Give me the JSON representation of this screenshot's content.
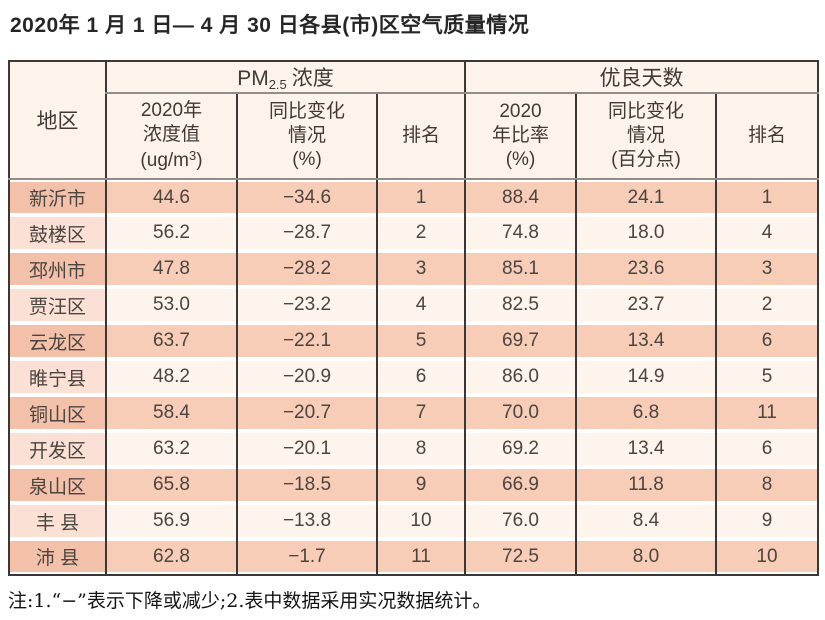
{
  "title": "2020年 1 月 1 日— 4 月 30 日各县(市)区空气质量情况",
  "footnote": "注:1.“−”表示下降或减少;2.表中数据采用实况数据统计。",
  "colors": {
    "band_salmon": "#f8cdb8",
    "band_salmon_dark": "#f3c0aa",
    "band_cream": "#fdf4ee",
    "band_pink": "#fbe1d5",
    "header_bg": "#fdf3ea",
    "border_dark": "#3b3734",
    "rule_gray": "#918d88"
  },
  "table": {
    "group": {
      "pm_prefix": "PM",
      "pm_sub": "2.5",
      "pm_label": "浓度",
      "good_days": "优良天数"
    },
    "columns": {
      "region": "地区",
      "pm_value": {
        "l1": "2020年",
        "l2": "浓度值",
        "unit_pre": "(ug/m",
        "unit_sup": "3",
        "unit_post": ")"
      },
      "pm_change": {
        "l1": "同比变化",
        "l2": "情况",
        "l3": "(%)"
      },
      "pm_rank": "排名",
      "good_ratio": {
        "l1": "2020",
        "l2": "年比率",
        "l3": "(%)"
      },
      "good_change": {
        "l1": "同比变化",
        "l2": "情况",
        "l3": "(百分点)"
      },
      "good_rank": "排名"
    },
    "rows": [
      {
        "region": "新沂市",
        "pm_value": "44.6",
        "pm_change": "−34.6",
        "pm_rank": "1",
        "good_ratio": "88.4",
        "good_change": "24.1",
        "good_rank": "1"
      },
      {
        "region": "鼓楼区",
        "pm_value": "56.2",
        "pm_change": "−28.7",
        "pm_rank": "2",
        "good_ratio": "74.8",
        "good_change": "18.0",
        "good_rank": "4"
      },
      {
        "region": "邳州市",
        "pm_value": "47.8",
        "pm_change": "−28.2",
        "pm_rank": "3",
        "good_ratio": "85.1",
        "good_change": "23.6",
        "good_rank": "3"
      },
      {
        "region": "贾汪区",
        "pm_value": "53.0",
        "pm_change": "−23.2",
        "pm_rank": "4",
        "good_ratio": "82.5",
        "good_change": "23.7",
        "good_rank": "2"
      },
      {
        "region": "云龙区",
        "pm_value": "63.7",
        "pm_change": "−22.1",
        "pm_rank": "5",
        "good_ratio": "69.7",
        "good_change": "13.4",
        "good_rank": "6"
      },
      {
        "region": "睢宁县",
        "pm_value": "48.2",
        "pm_change": "−20.9",
        "pm_rank": "6",
        "good_ratio": "86.0",
        "good_change": "14.9",
        "good_rank": "5"
      },
      {
        "region": "铜山区",
        "pm_value": "58.4",
        "pm_change": "−20.7",
        "pm_rank": "7",
        "good_ratio": "70.0",
        "good_change": "6.8",
        "good_rank": "11"
      },
      {
        "region": "开发区",
        "pm_value": "63.2",
        "pm_change": "−20.1",
        "pm_rank": "8",
        "good_ratio": "69.2",
        "good_change": "13.4",
        "good_rank": "6"
      },
      {
        "region": "泉山区",
        "pm_value": "65.8",
        "pm_change": "−18.5",
        "pm_rank": "9",
        "good_ratio": "66.9",
        "good_change": "11.8",
        "good_rank": "8"
      },
      {
        "region": "丰 县",
        "pm_value": "56.9",
        "pm_change": "−13.8",
        "pm_rank": "10",
        "good_ratio": "76.0",
        "good_change": "8.4",
        "good_rank": "9"
      },
      {
        "region": "沛 县",
        "pm_value": "62.8",
        "pm_change": "−1.7",
        "pm_rank": "11",
        "good_ratio": "72.5",
        "good_change": "8.0",
        "good_rank": "10"
      }
    ]
  }
}
